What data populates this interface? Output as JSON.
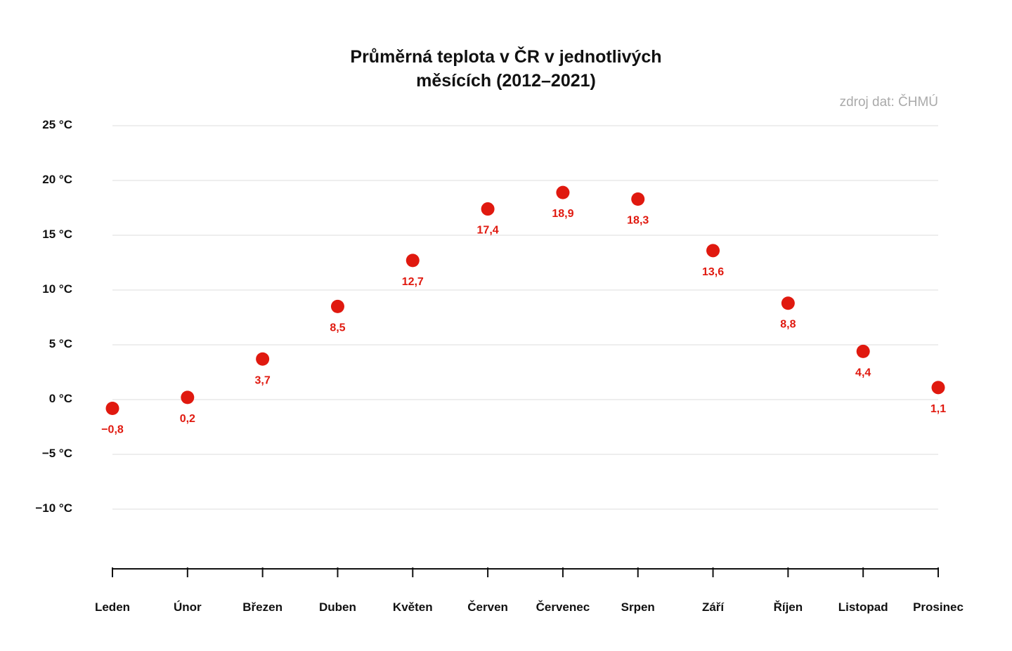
{
  "chart_data": {
    "type": "scatter",
    "title_lines": [
      "Průměrná teplota v ČR v jednotlivých",
      "měsících (2012–2021)"
    ],
    "source": "zdroj dat: ČHMÚ",
    "categories": [
      "Leden",
      "Únor",
      "Březen",
      "Duben",
      "Květen",
      "Červen",
      "Červenec",
      "Srpen",
      "Září",
      "Říjen",
      "Listopad",
      "Prosinec"
    ],
    "values": [
      -0.8,
      0.2,
      3.7,
      8.5,
      12.7,
      17.4,
      18.9,
      18.3,
      13.6,
      8.8,
      4.4,
      1.1
    ],
    "value_labels": [
      "−0,8",
      "0,2",
      "3,7",
      "8,5",
      "12,7",
      "17,4",
      "18,9",
      "18,3",
      "13,6",
      "8,8",
      "4,4",
      "1,1"
    ],
    "yticks": [
      25,
      20,
      15,
      10,
      5,
      0,
      -5,
      -10
    ],
    "ytick_labels": [
      "25 °C",
      "20 °C",
      "15 °C",
      "10 °C",
      "5 °C",
      "0 °C",
      "−5 °C",
      "−10 °C"
    ],
    "ylim": [
      -15,
      25
    ],
    "grid": true,
    "point_color": "#e0190f",
    "label_color": "#e0190f"
  }
}
